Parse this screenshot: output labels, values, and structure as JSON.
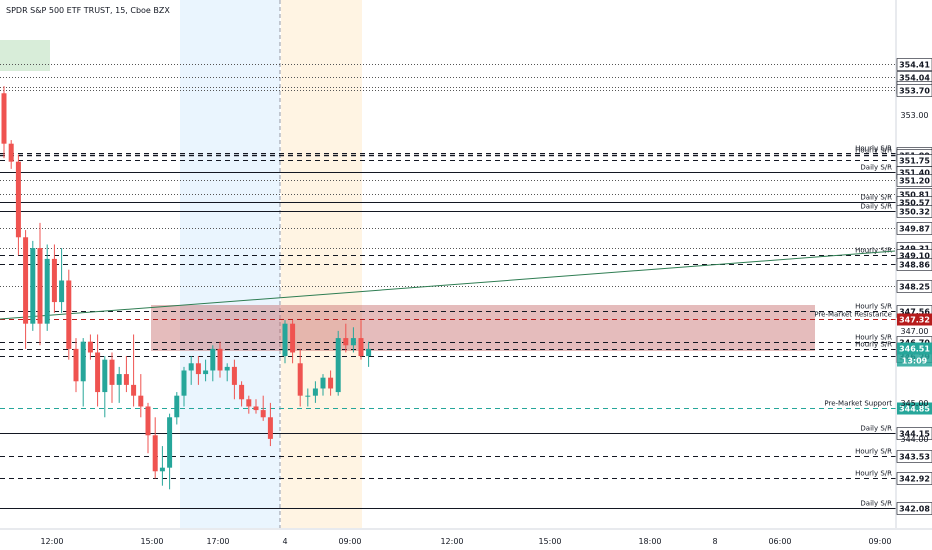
{
  "header": {
    "symbol_title": "SPDR S&P 500 ETF TRUST, 15, Cboe BZX"
  },
  "colors": {
    "up": "#26a69a",
    "down": "#ef5350",
    "resistance": "#b71c1c",
    "support": "#26a69a",
    "zone": "#c56b6b",
    "pre_session": "#e3f2fd",
    "market_session": "#fff3e0"
  },
  "price_axis": {
    "ticks": [
      "353.00",
      "347.00",
      "345.00",
      "344.00"
    ]
  },
  "time_axis": {
    "labels": [
      "12:00",
      "15:00",
      "17:00",
      "4",
      "09:00",
      "12:00",
      "15:00",
      "18:00",
      "8",
      "06:00",
      "09:00"
    ]
  },
  "levels": [
    {
      "price_label": "354.41",
      "style": "dotted",
      "text": ""
    },
    {
      "price_label": "354.04",
      "style": "dotted",
      "text": ""
    },
    {
      "price_label": "353.77",
      "style": "dotted",
      "text": ""
    },
    {
      "price_label": "353.70",
      "style": "dotted",
      "text": ""
    },
    {
      "price_label": "351.93",
      "style": "dashed",
      "text": "Hourly S/R"
    },
    {
      "price_label": "351.89",
      "style": "dashed",
      "text": "Hourly S/R"
    },
    {
      "price_label": "351.75",
      "style": "dashed",
      "text": ""
    },
    {
      "price_label": "351.41",
      "style": "dotted",
      "text": ""
    },
    {
      "price_label": "351.40",
      "style": "solid",
      "text": "Daily S/R"
    },
    {
      "price_label": "351.20",
      "style": "dotted",
      "text": ""
    },
    {
      "price_label": "350.81",
      "style": "dotted",
      "text": ""
    },
    {
      "price_label": "350.57",
      "style": "solid",
      "text": "Daily S/R"
    },
    {
      "price_label": "350.32",
      "style": "solid",
      "text": "Daily S/R"
    },
    {
      "price_label": "349.87",
      "style": "dotted",
      "text": ""
    },
    {
      "price_label": "349.31",
      "style": "dotted",
      "text": ""
    },
    {
      "price_label": "349.10",
      "style": "dashed",
      "text": "Hourly S/R"
    },
    {
      "price_label": "348.86",
      "style": "dashed",
      "text": ""
    },
    {
      "price_label": "348.25",
      "style": "dotted",
      "text": ""
    },
    {
      "price_label": "347.56",
      "style": "dashed",
      "text": "Hourly S/R"
    },
    {
      "price_label": "347.32",
      "style": "resistance",
      "text": "Pre-Market Resistance"
    },
    {
      "price_label": "346.70",
      "style": "dashed",
      "text": "Hourly S/R"
    },
    {
      "price_label": "346.51",
      "style": "dashed",
      "text": "Hourly S/R"
    },
    {
      "price_label": "346.29",
      "style": "dashed",
      "text": ""
    },
    {
      "price_label": "344.85",
      "style": "support",
      "text": "Pre-Market Support"
    },
    {
      "price_label": "344.15",
      "style": "solid",
      "text": "Daily S/R"
    },
    {
      "price_label": "343.53",
      "style": "dashed",
      "text": "Hourly S/R"
    },
    {
      "price_label": "342.92",
      "style": "dashed",
      "text": "Hourly S/R"
    },
    {
      "price_label": "342.08",
      "style": "solid",
      "text": "Daily S/R"
    }
  ],
  "price_tags": {
    "current_price": "346.51",
    "countdown": "13:09",
    "resistance_price": "347.32",
    "support_price": "344.85"
  },
  "chart_data": {
    "type": "candlestick",
    "title": "SPDR S&P 500 ETF TRUST, 15, Cboe BZX",
    "ylim": [
      341.9,
      354.6
    ],
    "candles": [
      {
        "o": 353.6,
        "h": 353.8,
        "l": 351.8,
        "c": 352.2
      },
      {
        "o": 352.2,
        "h": 352.3,
        "l": 351.5,
        "c": 351.7
      },
      {
        "o": 351.7,
        "h": 351.9,
        "l": 349.1,
        "c": 349.6
      },
      {
        "o": 349.6,
        "h": 349.8,
        "l": 346.5,
        "c": 347.2
      },
      {
        "o": 347.2,
        "h": 349.5,
        "l": 347.0,
        "c": 349.3
      },
      {
        "o": 349.3,
        "h": 350.0,
        "l": 346.6,
        "c": 347.2
      },
      {
        "o": 347.2,
        "h": 349.4,
        "l": 347.0,
        "c": 349.0
      },
      {
        "o": 349.0,
        "h": 349.4,
        "l": 347.5,
        "c": 347.8
      },
      {
        "o": 347.8,
        "h": 349.3,
        "l": 347.5,
        "c": 348.4
      },
      {
        "o": 348.4,
        "h": 348.7,
        "l": 346.2,
        "c": 346.5
      },
      {
        "o": 346.5,
        "h": 346.8,
        "l": 345.3,
        "c": 345.6
      },
      {
        "o": 345.6,
        "h": 346.8,
        "l": 344.9,
        "c": 346.7
      },
      {
        "o": 346.7,
        "h": 346.9,
        "l": 346.2,
        "c": 346.4
      },
      {
        "o": 346.4,
        "h": 346.9,
        "l": 344.9,
        "c": 345.3
      },
      {
        "o": 345.3,
        "h": 346.3,
        "l": 344.6,
        "c": 346.2
      },
      {
        "o": 346.2,
        "h": 346.4,
        "l": 345.0,
        "c": 345.5
      },
      {
        "o": 345.5,
        "h": 346.0,
        "l": 345.0,
        "c": 345.8
      },
      {
        "o": 345.8,
        "h": 346.3,
        "l": 345.3,
        "c": 345.5
      },
      {
        "o": 345.5,
        "h": 346.9,
        "l": 344.9,
        "c": 345.2
      },
      {
        "o": 345.2,
        "h": 345.8,
        "l": 344.6,
        "c": 344.9
      },
      {
        "o": 344.9,
        "h": 345.0,
        "l": 343.6,
        "c": 344.1
      },
      {
        "o": 344.1,
        "h": 344.6,
        "l": 342.9,
        "c": 343.1
      },
      {
        "o": 343.1,
        "h": 343.8,
        "l": 342.7,
        "c": 343.2
      },
      {
        "o": 343.2,
        "h": 344.7,
        "l": 342.6,
        "c": 344.6
      },
      {
        "o": 344.6,
        "h": 345.3,
        "l": 344.4,
        "c": 345.2
      },
      {
        "o": 345.2,
        "h": 346.0,
        "l": 344.9,
        "c": 345.9
      },
      {
        "o": 345.9,
        "h": 346.3,
        "l": 345.5,
        "c": 346.1
      },
      {
        "o": 346.1,
        "h": 346.3,
        "l": 345.5,
        "c": 345.8
      },
      {
        "o": 345.8,
        "h": 346.2,
        "l": 345.6,
        "c": 345.9
      },
      {
        "o": 345.9,
        "h": 346.6,
        "l": 345.6,
        "c": 346.5
      },
      {
        "o": 346.5,
        "h": 346.7,
        "l": 345.7,
        "c": 345.9
      },
      {
        "o": 345.9,
        "h": 346.1,
        "l": 345.6,
        "c": 346.0
      },
      {
        "o": 346.0,
        "h": 346.2,
        "l": 345.1,
        "c": 345.5
      },
      {
        "o": 345.5,
        "h": 345.6,
        "l": 344.9,
        "c": 345.1
      },
      {
        "o": 345.1,
        "h": 345.2,
        "l": 344.7,
        "c": 344.9
      },
      {
        "o": 344.9,
        "h": 345.1,
        "l": 344.7,
        "c": 344.8
      },
      {
        "o": 344.8,
        "h": 345.2,
        "l": 344.5,
        "c": 344.6
      },
      {
        "o": 344.6,
        "h": 345.0,
        "l": 343.8,
        "c": 344.0
      },
      {
        "o": 346.3,
        "h": 347.3,
        "l": 346.1,
        "c": 347.2
      },
      {
        "o": 347.2,
        "h": 347.3,
        "l": 346.1,
        "c": 346.4
      },
      {
        "o": 346.1,
        "h": 346.5,
        "l": 344.9,
        "c": 345.2
      },
      {
        "o": 345.2,
        "h": 345.4,
        "l": 344.9,
        "c": 345.2
      },
      {
        "o": 345.2,
        "h": 345.6,
        "l": 345.0,
        "c": 345.4
      },
      {
        "o": 345.4,
        "h": 345.8,
        "l": 345.2,
        "c": 345.7
      },
      {
        "o": 345.7,
        "h": 345.9,
        "l": 345.2,
        "c": 345.4
      },
      {
        "o": 345.3,
        "h": 347.0,
        "l": 345.2,
        "c": 346.8
      },
      {
        "o": 346.8,
        "h": 347.2,
        "l": 346.4,
        "c": 346.6
      },
      {
        "o": 346.6,
        "h": 347.1,
        "l": 346.4,
        "c": 346.8
      },
      {
        "o": 346.8,
        "h": 347.3,
        "l": 346.2,
        "c": 346.3
      },
      {
        "o": 346.3,
        "h": 346.7,
        "l": 346.0,
        "c": 346.5
      }
    ]
  }
}
